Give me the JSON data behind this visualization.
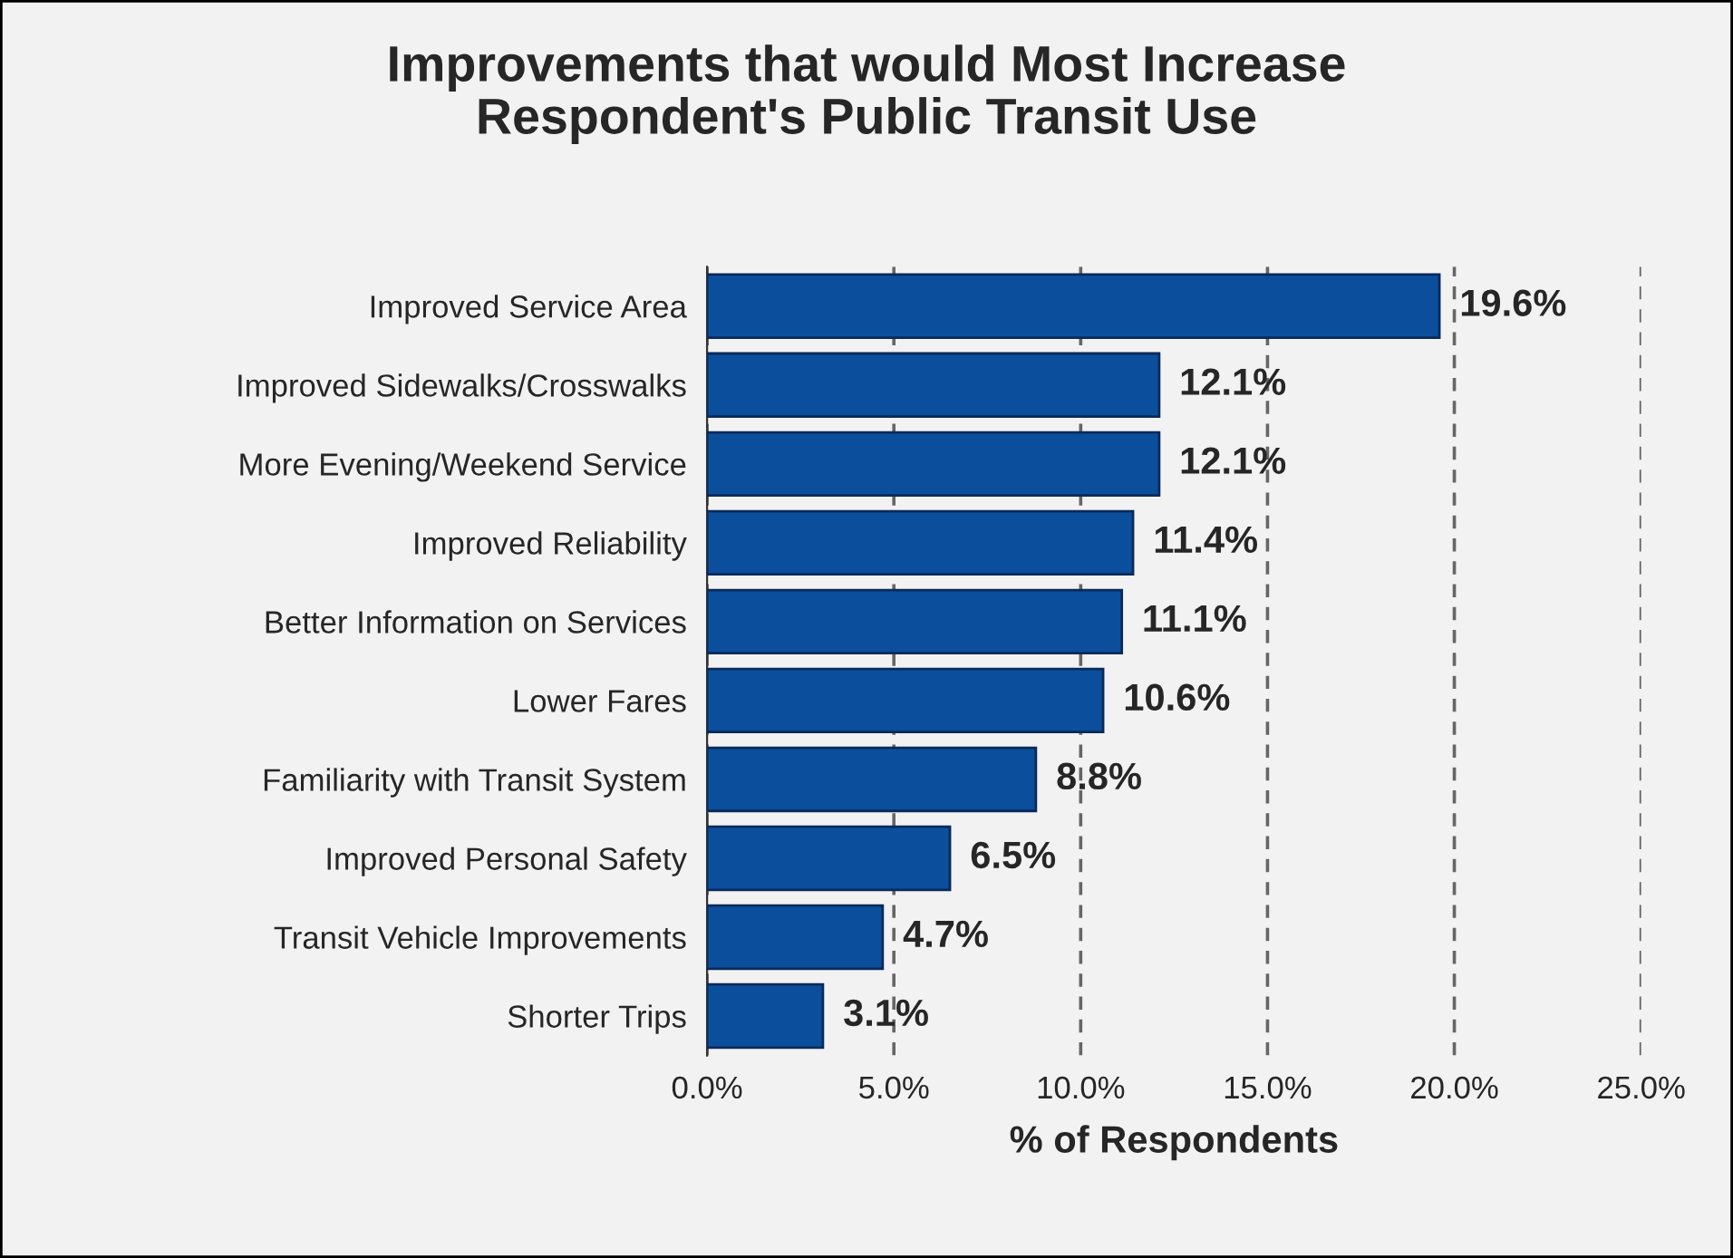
{
  "chart_data": {
    "type": "bar",
    "orientation": "horizontal",
    "title": "Improvements that would Most Increase\nRespondent's Public Transit Use",
    "xlabel": "% of Respondents",
    "categories": [
      "Improved Service Area",
      "Improved Sidewalks/Crosswalks",
      "More Evening/Weekend Service",
      "Improved Reliability",
      "Better Information on Services",
      "Lower Fares",
      "Familiarity with Transit System",
      "Improved Personal Safety",
      "Transit Vehicle Improvements",
      "Shorter Trips"
    ],
    "values": [
      19.6,
      12.1,
      12.1,
      11.4,
      11.1,
      10.6,
      8.8,
      6.5,
      4.7,
      3.1
    ],
    "value_labels": [
      "19.6%",
      "12.1%",
      "12.1%",
      "11.4%",
      "11.1%",
      "10.6%",
      "8.8%",
      "6.5%",
      "4.7%",
      "3.1%"
    ],
    "color": "#0b4f9c",
    "xlim": [
      0,
      25
    ],
    "xticks": [
      {
        "value": 0,
        "label": "0.0%"
      },
      {
        "value": 5,
        "label": "5.0%"
      },
      {
        "value": 10,
        "label": "10.0%"
      },
      {
        "value": 15,
        "label": "15.0%"
      },
      {
        "value": 20,
        "label": "20.0%"
      },
      {
        "value": 25,
        "label": "25.0%"
      }
    ],
    "grid": "x"
  }
}
